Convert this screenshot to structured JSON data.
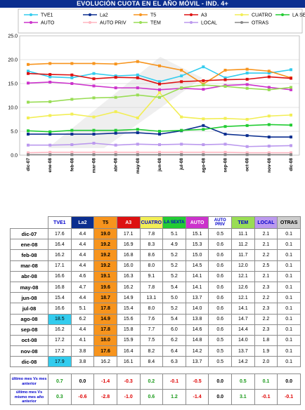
{
  "title": "EVOLUCIÓN CUOTA EN EL AÑO MÓVIL - IND. 4+",
  "chart_data": {
    "type": "line",
    "categories": [
      "dic-07",
      "ene-08",
      "feb-08",
      "mar-08",
      "abr-08",
      "may-08",
      "jun-08",
      "jul-08",
      "ago-08",
      "sep-08",
      "oct-08",
      "nov-08",
      "dic-08"
    ],
    "ylim": [
      0,
      25
    ],
    "yticks": [
      "0.0",
      "5.0",
      "10.0",
      "15.0",
      "20.0",
      "25.0"
    ],
    "grid": true,
    "legend_position": "top",
    "series": [
      {
        "name": "TVE1",
        "color": "#33ccee",
        "values": [
          17.6,
          16.4,
          16.2,
          17.1,
          16.6,
          16.8,
          15.4,
          16.6,
          18.5,
          16.2,
          17.2,
          17.2,
          17.9
        ]
      },
      {
        "name": "La2",
        "color": "#0b2e8f",
        "values": [
          4.4,
          4.4,
          4.4,
          4.4,
          4.6,
          4.7,
          4.4,
          5.1,
          6.2,
          4.4,
          4.1,
          3.8,
          3.8
        ]
      },
      {
        "name": "T5",
        "color": "#f7941d",
        "values": [
          19.0,
          19.2,
          19.2,
          19.2,
          19.1,
          19.6,
          18.7,
          17.8,
          14.9,
          17.8,
          18.0,
          17.6,
          16.2
        ]
      },
      {
        "name": "A3",
        "color": "#dd1111",
        "values": [
          17.1,
          16.9,
          16.8,
          16.0,
          16.3,
          16.2,
          14.9,
          15.4,
          15.6,
          15.8,
          15.9,
          16.4,
          16.1
        ]
      },
      {
        "name": "CUATRO",
        "color": "#f2ee55",
        "values": [
          7.8,
          8.3,
          8.6,
          8.0,
          9.1,
          7.8,
          13.1,
          8.0,
          7.6,
          7.7,
          7.5,
          8.2,
          8.4
        ]
      },
      {
        "name": "LA SEXTA",
        "color": "#22cc33",
        "values": [
          5.1,
          4.9,
          5.2,
          5.2,
          5.2,
          5.4,
          5.0,
          5.2,
          5.4,
          6.0,
          6.2,
          6.4,
          6.3
        ]
      },
      {
        "name": "AUTO",
        "color": "#cc33cc",
        "values": [
          15.1,
          15.3,
          15.0,
          14.5,
          14.1,
          14.1,
          13.7,
          14.0,
          13.8,
          14.6,
          14.8,
          14.2,
          13.7
        ]
      },
      {
        "name": "AUTO PRIV",
        "color": "#ffb6c1",
        "values": [
          0.5,
          0.6,
          0.6,
          0.6,
          0.6,
          0.6,
          0.6,
          0.6,
          0.6,
          0.6,
          0.5,
          0.5,
          0.5
        ]
      },
      {
        "name": "TEM",
        "color": "#99dd55",
        "values": [
          11.1,
          11.2,
          11.7,
          12.0,
          12.1,
          12.6,
          12.1,
          14.1,
          14.7,
          14.4,
          14.0,
          13.7,
          14.2
        ]
      },
      {
        "name": "LOCAL",
        "color": "#bb99ee",
        "values": [
          2.1,
          2.1,
          2.2,
          2.5,
          2.1,
          2.3,
          2.2,
          2.3,
          2.2,
          2.3,
          1.8,
          1.9,
          2.0
        ]
      },
      {
        "name": "OTRAS",
        "color": "#888888",
        "values": [
          0.1,
          0.1,
          0.1,
          0.1,
          0.1,
          0.1,
          0.1,
          0.1,
          0.1,
          0.1,
          0.1,
          0.1,
          0.1
        ]
      }
    ]
  },
  "table": {
    "headers": [
      "TVE1",
      "La2",
      "T5",
      "A3",
      "CUATRO",
      "LA SEXTA",
      "AUTO",
      "AUTO PRIV",
      "TEM",
      "LOCAL",
      "OTRAS"
    ],
    "header_bg": [
      "#ffffff",
      "#0b2e8f",
      "#f7941d",
      "#dd1111",
      "#f2ee55",
      "#22cc33",
      "#cc33cc",
      "#ffffff",
      "#99dd55",
      "#bb99ee",
      "#cccccc"
    ],
    "header_fg": [
      "#0000cc",
      "#ffffff",
      "#000000",
      "#ffffff",
      "#0000cc",
      "#0000cc",
      "#ffffff",
      "#0000cc",
      "#0000cc",
      "#0000cc",
      "#000000"
    ],
    "rows": [
      {
        "label": "dic-07",
        "values": [
          "17.6",
          "4.4",
          "19.0",
          "17.1",
          "7.8",
          "5.1",
          "15.1",
          "0.5",
          "11.1",
          "2.1",
          "0.1"
        ]
      },
      {
        "label": "ene-08",
        "values": [
          "16.4",
          "4.4",
          "19.2",
          "16.9",
          "8.3",
          "4.9",
          "15.3",
          "0.6",
          "11.2",
          "2.1",
          "0.1"
        ]
      },
      {
        "label": "feb-08",
        "values": [
          "16.2",
          "4.4",
          "19.2",
          "16.8",
          "8.6",
          "5.2",
          "15.0",
          "0.6",
          "11.7",
          "2.2",
          "0.1"
        ]
      },
      {
        "label": "mar-08",
        "values": [
          "17.1",
          "4.4",
          "19.2",
          "16.0",
          "8.0",
          "5.2",
          "14.5",
          "0.6",
          "12.0",
          "2.5",
          "0.1"
        ]
      },
      {
        "label": "abr-08",
        "values": [
          "16.6",
          "4.6",
          "19.1",
          "16.3",
          "9.1",
          "5.2",
          "14.1",
          "0.6",
          "12.1",
          "2.1",
          "0.1"
        ]
      },
      {
        "label": "may-08",
        "values": [
          "16.8",
          "4.7",
          "19.6",
          "16.2",
          "7.8",
          "5.4",
          "14.1",
          "0.6",
          "12.6",
          "2.3",
          "0.1"
        ]
      },
      {
        "label": "jun-08",
        "values": [
          "15.4",
          "4.4",
          "18.7",
          "14.9",
          "13.1",
          "5.0",
          "13.7",
          "0.6",
          "12.1",
          "2.2",
          "0.1"
        ]
      },
      {
        "label": "jul-08",
        "values": [
          "16.6",
          "5.1",
          "17.8",
          "15.4",
          "8.0",
          "5.2",
          "14.0",
          "0.6",
          "14.1",
          "2.3",
          "0.1"
        ]
      },
      {
        "label": "ago-08",
        "values": [
          "18.5",
          "6.2",
          "14.9",
          "15.6",
          "7.6",
          "5.4",
          "13.8",
          "0.6",
          "14.7",
          "2.2",
          "0.1"
        ]
      },
      {
        "label": "sep-08",
        "values": [
          "16.2",
          "4.4",
          "17.8",
          "15.8",
          "7.7",
          "6.0",
          "14.6",
          "0.6",
          "14.4",
          "2.3",
          "0.1"
        ]
      },
      {
        "label": "oct-08",
        "values": [
          "17.2",
          "4.1",
          "18.0",
          "15.9",
          "7.5",
          "6.2",
          "14.8",
          "0.5",
          "14.0",
          "1.8",
          "0.1"
        ]
      },
      {
        "label": "nov-08",
        "values": [
          "17.2",
          "3.8",
          "17.6",
          "16.4",
          "8.2",
          "6.4",
          "14.2",
          "0.5",
          "13.7",
          "1.9",
          "0.1"
        ]
      },
      {
        "label": "dic-08",
        "values": [
          "17.9",
          "3.8",
          "16.2",
          "16.1",
          "8.4",
          "6.3",
          "13.7",
          "0.5",
          "14.2",
          "2.0",
          "0.1"
        ]
      }
    ],
    "highlight_t5_rows": 12,
    "highlight_tve1_rows": [
      8,
      12
    ],
    "diff_rows": [
      {
        "label": "último mes Vs mes anterior",
        "values": [
          "0.7",
          "0.0",
          "-1.4",
          "-0.3",
          "0.2",
          "-0.1",
          "-0.5",
          "0.0",
          "0.5",
          "0.1",
          "0.0"
        ]
      },
      {
        "label": "último mes Vs mismo mes año anterior",
        "values": [
          "0.3",
          "-0.6",
          "-2.8",
          "-1.0",
          "0.6",
          "1.2",
          "-1.4",
          "0.0",
          "3.1",
          "-0.1",
          "-0.1"
        ]
      }
    ]
  }
}
